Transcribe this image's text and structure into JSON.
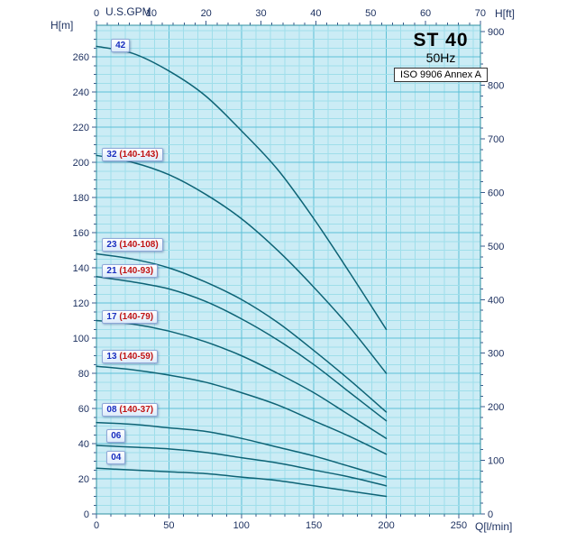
{
  "chart_data": {
    "type": "line",
    "title": "ST 40",
    "subtitle": "50Hz",
    "note": "ISO 9906 Annex A",
    "grid": "on",
    "legend": "inline curve labels",
    "bottom_axis": {
      "title": "Q[l/min]",
      "ticks": [
        0,
        50,
        100,
        150,
        200,
        250
      ],
      "minor_step": 10,
      "range": [
        0,
        265
      ]
    },
    "top_axis": {
      "title": "U.S.GPM",
      "ticks": [
        0,
        10,
        20,
        30,
        40,
        50,
        60,
        70
      ],
      "minor_step": 2,
      "lpm_per_gpm": 3.785
    },
    "left_axis": {
      "title": "H[m]",
      "ticks": [
        0,
        20,
        40,
        60,
        80,
        100,
        120,
        140,
        160,
        180,
        200,
        220,
        240,
        260
      ],
      "minor_step": 5,
      "range": [
        0,
        278
      ]
    },
    "right_axis": {
      "title": "H[ft]",
      "ticks": [
        0,
        100,
        200,
        300,
        400,
        500,
        600,
        700,
        800,
        900
      ],
      "minor_step": 20,
      "m_per_ft": 0.3048
    },
    "x": [
      0,
      25,
      50,
      75,
      100,
      125,
      150,
      175,
      200
    ],
    "series": [
      {
        "stages": "42",
        "code": "",
        "label_q": 10,
        "label_h": 266,
        "values": [
          266,
          262,
          252,
          238,
          218,
          196,
          168,
          137,
          105
        ]
      },
      {
        "stages": "32",
        "code": "(140-143)",
        "label_q": 4,
        "label_h": 204,
        "values": [
          204,
          200,
          193,
          182,
          168,
          150,
          129,
          106,
          80
        ]
      },
      {
        "stages": "23",
        "code": "(140-108)",
        "label_q": 4,
        "label_h": 153,
        "values": [
          148,
          145,
          140,
          132,
          122,
          109,
          93,
          76,
          58
        ]
      },
      {
        "stages": "21",
        "code": "(140-93)",
        "label_q": 4,
        "label_h": 138,
        "values": [
          135,
          132,
          128,
          121,
          111,
          99,
          85,
          69,
          53
        ]
      },
      {
        "stages": "17",
        "code": "(140-79)",
        "label_q": 4,
        "label_h": 112,
        "values": [
          110,
          108,
          104,
          98,
          90,
          80,
          69,
          56,
          43
        ]
      },
      {
        "stages": "13",
        "code": "(140-59)",
        "label_q": 4,
        "label_h": 89,
        "values": [
          84,
          82,
          79,
          75,
          69,
          62,
          53,
          44,
          34
        ]
      },
      {
        "stages": "08",
        "code": "(140-37)",
        "label_q": 4,
        "label_h": 59,
        "values": [
          52,
          51,
          49,
          47,
          43,
          38,
          33,
          27,
          21
        ]
      },
      {
        "stages": "06",
        "code": "",
        "label_q": 7,
        "label_h": 44,
        "values": [
          39,
          38,
          37,
          35,
          32,
          29,
          25,
          21,
          16
        ]
      },
      {
        "stages": "04",
        "code": "",
        "label_q": 7,
        "label_h": 32,
        "values": [
          26,
          25,
          24,
          23,
          21,
          19,
          16,
          13,
          10
        ]
      }
    ],
    "colors": {
      "curve": "#0d6375",
      "plot_bg": "#cbecf5",
      "grid_minor": "#9fdeea",
      "grid_major": "#5cc0d6",
      "border": "#2e8fa0",
      "tick": "#3a5a8c",
      "axis_text": "#1e3261",
      "label_blue": "#1a2fc0",
      "label_red": "#c11212"
    }
  }
}
